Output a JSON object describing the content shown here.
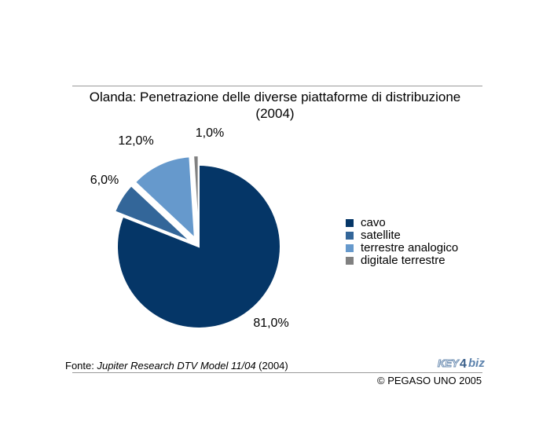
{
  "title": {
    "line1": "Olanda: Penetrazione delle diverse piattaforme di distribuzione",
    "line2": "(2004)"
  },
  "chart_data": {
    "type": "pie",
    "categories": [
      "cavo",
      "satellite",
      "terrestre analogico",
      "digitale terrestre"
    ],
    "values": [
      81.0,
      6.0,
      12.0,
      1.0
    ],
    "labels": [
      "81,0%",
      "6,0%",
      "12,0%",
      "1,0%"
    ],
    "colors": [
      "#053667",
      "#336699",
      "#6699cc",
      "#808080"
    ],
    "exploded": [
      false,
      true,
      true,
      true
    ],
    "legend_position": "right"
  },
  "source": {
    "prefix": "Fonte: ",
    "name": "Jupiter Research DTV Model 11/04",
    "suffix": " (2004)"
  },
  "copyright": "© PEGASO UNO 2005",
  "logo": {
    "text": "KEY4biz",
    "colors": {
      "primary": "#6f8fb3",
      "accent": "#3a5f8a"
    }
  }
}
